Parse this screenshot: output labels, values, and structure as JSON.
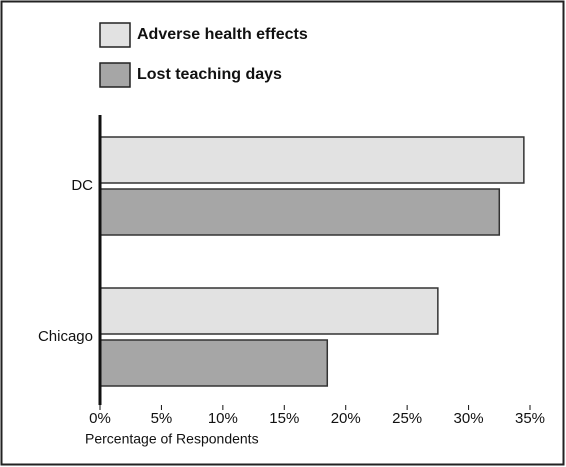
{
  "chart_data": {
    "type": "hbar",
    "categories": [
      "DC",
      "Chicago"
    ],
    "series": [
      {
        "name": "Adverse health effects",
        "color": "#e2e2e2",
        "values": [
          34.5,
          27.5
        ]
      },
      {
        "name": "Lost teaching days",
        "color": "#a6a6a6",
        "values": [
          32.5,
          18.5
        ]
      }
    ],
    "xlabel": "Percentage of Respondents",
    "xlim": [
      0,
      35
    ],
    "xticks": [
      {
        "value": 0,
        "label": "0%"
      },
      {
        "value": 5,
        "label": "5%"
      },
      {
        "value": 10,
        "label": "10%"
      },
      {
        "value": 15,
        "label": "15%"
      },
      {
        "value": 20,
        "label": "20%"
      },
      {
        "value": 25,
        "label": "25%"
      },
      {
        "value": 30,
        "label": "30%"
      },
      {
        "value": 35,
        "label": "35%"
      }
    ]
  }
}
